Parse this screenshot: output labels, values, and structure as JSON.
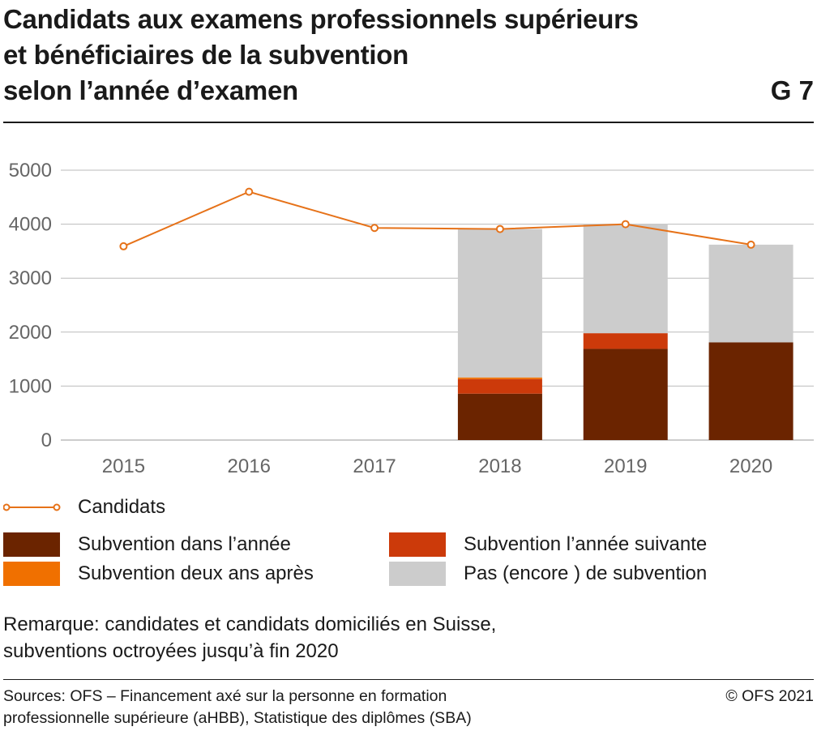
{
  "title_lines": [
    "Candidats aux examens professionnels supérieurs",
    "et bénéficiaires de la subvention",
    "selon l’année d’examen"
  ],
  "figure_id": "G 7",
  "colors": {
    "subvention_annee": "#6b2400",
    "subvention_suivante": "#cc3a0a",
    "subvention_deux_ans": "#f07000",
    "pas_encore": "#cccccc",
    "candidats_line": "#e67219",
    "grid": "#bbbbbb",
    "axis_text": "#666666"
  },
  "chart_data": {
    "type": "bar",
    "stacked": true,
    "categories": [
      "2015",
      "2016",
      "2017",
      "2018",
      "2019",
      "2020"
    ],
    "ylim": [
      0,
      5000
    ],
    "yticks": [
      "0",
      "1000",
      "2000",
      "3000",
      "4000",
      "5000"
    ],
    "grid": true,
    "series": [
      {
        "name": "Subvention dans l’année",
        "color": "#6b2400",
        "values": [
          null,
          null,
          null,
          860,
          1690,
          1810
        ]
      },
      {
        "name": "Subvention l’année suivante",
        "color": "#cc3a0a",
        "values": [
          null,
          null,
          null,
          270,
          290,
          0
        ]
      },
      {
        "name": "Subvention deux ans après",
        "color": "#f07000",
        "values": [
          null,
          null,
          null,
          30,
          0,
          0
        ]
      },
      {
        "name": "Pas (encore ) de subvention",
        "color": "#cccccc",
        "values": [
          null,
          null,
          null,
          2750,
          2020,
          1810
        ]
      }
    ],
    "line_series": {
      "name": "Candidats",
      "color": "#e67219",
      "values": [
        3590,
        4600,
        3930,
        3910,
        4000,
        3620
      ]
    }
  },
  "legend": {
    "line_label": "Candidats",
    "items": [
      {
        "label": "Subvention dans l’année",
        "color": "#6b2400"
      },
      {
        "label": "Subvention l’année suivante",
        "color": "#cc3a0a"
      },
      {
        "label": "Subvention deux ans après",
        "color": "#f07000"
      },
      {
        "label": "Pas (encore ) de subvention",
        "color": "#cccccc"
      }
    ]
  },
  "note_lines": [
    "Remarque: candidates et candidats domiciliés en Suisse,",
    "subventions octroyées jusqu’à fin 2020"
  ],
  "sources_lines": [
    "Sources: OFS – Financement axé sur la personne en formation",
    "professionnelle supérieure (aHBB), Statistique des diplômes (SBA)"
  ],
  "copyright": "© OFS 2021"
}
